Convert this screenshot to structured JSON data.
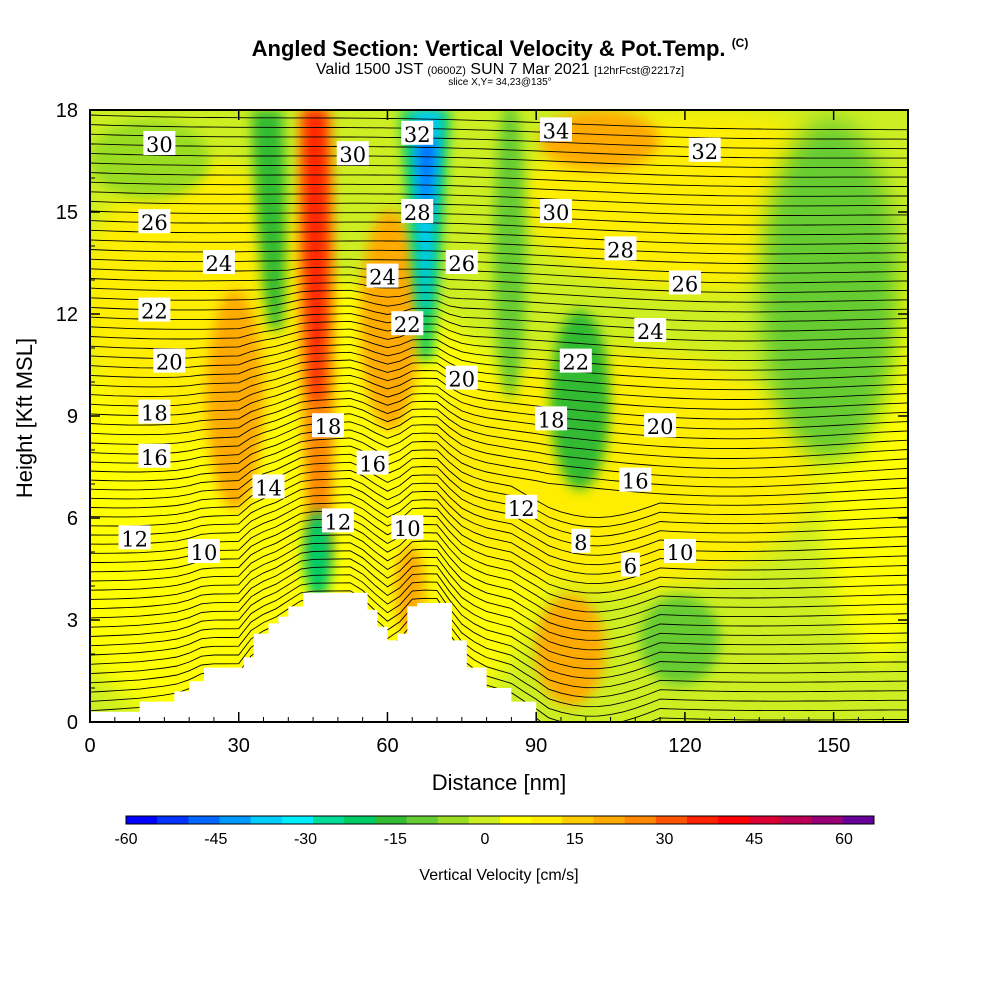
{
  "header": {
    "title": "Angled Section: Vertical Velocity & Pot.Temp.",
    "title_mark": "(C)",
    "valid_pre": "Valid 1500 JST",
    "valid_zulu": "(0600Z)",
    "valid_date": "SUN 7 Mar 2021",
    "forecast": "[12hrFcst@2217z]",
    "slice": "slice X,Y= 34,23@135°"
  },
  "chart_data": {
    "type": "heatmap",
    "xlabel": "Distance [nm]",
    "ylabel": "Height [Kft MSL]",
    "xlim": [
      0,
      165
    ],
    "ylim": [
      0,
      18
    ],
    "xticks": [
      "0",
      "30",
      "60",
      "90",
      "120",
      "150"
    ],
    "yticks": [
      "0",
      "3",
      "6",
      "9",
      "12",
      "15",
      "18"
    ],
    "grid": false,
    "terrain_kft": [
      [
        0,
        0.3
      ],
      [
        10,
        0.6
      ],
      [
        17,
        0.9
      ],
      [
        20,
        1.2
      ],
      [
        23,
        1.6
      ],
      [
        30,
        1.6
      ],
      [
        31,
        1.9
      ],
      [
        33,
        2.6
      ],
      [
        36,
        2.9
      ],
      [
        38,
        3.1
      ],
      [
        40,
        3.4
      ],
      [
        43,
        3.8
      ],
      [
        53,
        3.8
      ],
      [
        56,
        3.3
      ],
      [
        58,
        2.8
      ],
      [
        60,
        2.4
      ],
      [
        62,
        2.6
      ],
      [
        64,
        3.4
      ],
      [
        66,
        3.5
      ],
      [
        71,
        3.5
      ],
      [
        73,
        2.4
      ],
      [
        76,
        1.6
      ],
      [
        80,
        1.0
      ],
      [
        85,
        0.6
      ],
      [
        90,
        0.3
      ]
    ],
    "vertical_velocity_cm_s": [
      {
        "feature": "updraft",
        "x": 45,
        "y": 12.0,
        "value": 50
      },
      {
        "feature": "downdraft",
        "x": 38,
        "y": 14.0,
        "value": -25
      },
      {
        "feature": "downdraft",
        "x": 70,
        "y": 15.0,
        "value": -45
      },
      {
        "feature": "downdraft",
        "x": 96,
        "y": 10.0,
        "value": -20
      },
      {
        "feature": "downdraft",
        "x": 143,
        "y": 12.0,
        "value": -12
      },
      {
        "feature": "updraft",
        "x": 30,
        "y": 9.0,
        "value": 20
      },
      {
        "feature": "updraft",
        "x": 58,
        "y": 12.0,
        "value": 15
      },
      {
        "feature": "updraft",
        "x": 90,
        "y": 3.0,
        "value": 15
      },
      {
        "feature": "downdraft",
        "x": 115,
        "y": 2.5,
        "value": -15
      }
    ],
    "potential_temperature_labels_C": [
      {
        "text": "30",
        "x": 14,
        "y": 17.0
      },
      {
        "text": "30",
        "x": 53,
        "y": 16.7
      },
      {
        "text": "32",
        "x": 66,
        "y": 17.3
      },
      {
        "text": "34",
        "x": 94,
        "y": 17.4
      },
      {
        "text": "32",
        "x": 124,
        "y": 16.8
      },
      {
        "text": "26",
        "x": 13,
        "y": 14.7
      },
      {
        "text": "28",
        "x": 66,
        "y": 15.0
      },
      {
        "text": "30",
        "x": 94,
        "y": 15.0
      },
      {
        "text": "28",
        "x": 107,
        "y": 13.9
      },
      {
        "text": "24",
        "x": 26,
        "y": 13.5
      },
      {
        "text": "24",
        "x": 59,
        "y": 13.1
      },
      {
        "text": "26",
        "x": 75,
        "y": 13.5
      },
      {
        "text": "26",
        "x": 120,
        "y": 12.9
      },
      {
        "text": "22",
        "x": 13,
        "y": 12.1
      },
      {
        "text": "22",
        "x": 64,
        "y": 11.7
      },
      {
        "text": "24",
        "x": 113,
        "y": 11.5
      },
      {
        "text": "20",
        "x": 16,
        "y": 10.6
      },
      {
        "text": "22",
        "x": 98,
        "y": 10.6
      },
      {
        "text": "20",
        "x": 75,
        "y": 10.1
      },
      {
        "text": "18",
        "x": 13,
        "y": 9.1
      },
      {
        "text": "18",
        "x": 48,
        "y": 8.7
      },
      {
        "text": "18",
        "x": 93,
        "y": 8.9
      },
      {
        "text": "20",
        "x": 115,
        "y": 8.7
      },
      {
        "text": "16",
        "x": 13,
        "y": 7.8
      },
      {
        "text": "16",
        "x": 57,
        "y": 7.6
      },
      {
        "text": "16",
        "x": 110,
        "y": 7.1
      },
      {
        "text": "14",
        "x": 36,
        "y": 6.9
      },
      {
        "text": "12",
        "x": 87,
        "y": 6.3
      },
      {
        "text": "12",
        "x": 50,
        "y": 5.9
      },
      {
        "text": "12",
        "x": 9,
        "y": 5.4
      },
      {
        "text": "10",
        "x": 64,
        "y": 5.7
      },
      {
        "text": "8",
        "x": 99,
        "y": 5.3
      },
      {
        "text": "10",
        "x": 119,
        "y": 5.0
      },
      {
        "text": "10",
        "x": 23,
        "y": 5.0
      },
      {
        "text": "6",
        "x": 109,
        "y": 4.6
      }
    ]
  },
  "colorbar": {
    "label": "Vertical Velocity [cm/s]",
    "ticks": [
      "-60",
      "-45",
      "-30",
      "-15",
      "0",
      "15",
      "30",
      "45",
      "60"
    ],
    "colors": [
      "#0000ff",
      "#0033ff",
      "#0066ff",
      "#0099ff",
      "#00ccff",
      "#00eeff",
      "#00dd99",
      "#00cc66",
      "#33bb33",
      "#66cc33",
      "#99dd22",
      "#ccee22",
      "#ffff00",
      "#ffee00",
      "#ffcc00",
      "#ffaa00",
      "#ff8800",
      "#ff5500",
      "#ff2200",
      "#ff0000",
      "#dd0033",
      "#bb0055",
      "#990077",
      "#660099"
    ]
  }
}
